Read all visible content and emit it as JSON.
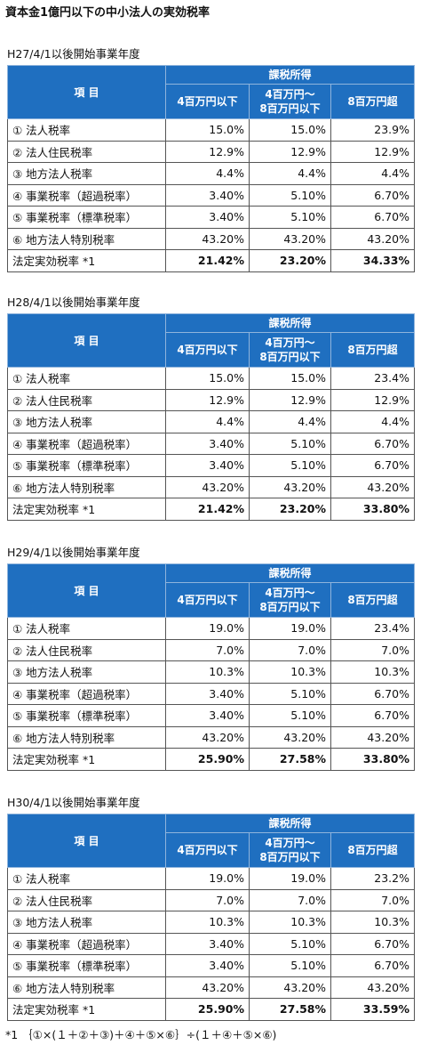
{
  "title": "資本金1億円以下の中小法人の実効税率",
  "sections": [
    {
      "heading": "H27/4/1以後開始事業年度",
      "item_header": "項 目",
      "group_header": "課税所得",
      "columns": [
        [
          "4百万円以下"
        ],
        [
          "4百万円～",
          "8百万円以下"
        ],
        [
          "8百万円超"
        ]
      ],
      "rows": [
        [
          "① 法人税率",
          "15.0%",
          "15.0%",
          "23.9%"
        ],
        [
          "② 法人住民税率",
          "12.9%",
          "12.9%",
          "12.9%"
        ],
        [
          "③ 地方法人税率",
          "4.4%",
          "4.4%",
          "4.4%"
        ],
        [
          "④ 事業税率（超過税率）",
          "3.40%",
          "5.10%",
          "6.70%"
        ],
        [
          "⑤ 事業税率（標準税率）",
          "3.40%",
          "5.10%",
          "6.70%"
        ],
        [
          "⑥ 地方法人特別税率",
          "43.20%",
          "43.20%",
          "43.20%"
        ],
        [
          "法定実効税率 *1",
          "21.42%",
          "23.20%",
          "34.33%"
        ]
      ]
    },
    {
      "heading": "H28/4/1以後開始事業年度",
      "item_header": "項 目",
      "group_header": "課税所得",
      "columns": [
        [
          "4百万円以下"
        ],
        [
          "4百万円～",
          "8百万円以下"
        ],
        [
          "8百万円超"
        ]
      ],
      "rows": [
        [
          "① 法人税率",
          "15.0%",
          "15.0%",
          "23.4%"
        ],
        [
          "② 法人住民税率",
          "12.9%",
          "12.9%",
          "12.9%"
        ],
        [
          "③ 地方法人税率",
          "4.4%",
          "4.4%",
          "4.4%"
        ],
        [
          "④ 事業税率（超過税率）",
          "3.40%",
          "5.10%",
          "6.70%"
        ],
        [
          "⑤ 事業税率（標準税率）",
          "3.40%",
          "5.10%",
          "6.70%"
        ],
        [
          "⑥ 地方法人特別税率",
          "43.20%",
          "43.20%",
          "43.20%"
        ],
        [
          "法定実効税率 *1",
          "21.42%",
          "23.20%",
          "33.80%"
        ]
      ]
    },
    {
      "heading": "H29/4/1以後開始事業年度",
      "item_header": "項 目",
      "group_header": "課税所得",
      "columns": [
        [
          "4百万円以下"
        ],
        [
          "4百万円～",
          "8百万円以下"
        ],
        [
          "8百万円超"
        ]
      ],
      "rows": [
        [
          "① 法人税率",
          "19.0%",
          "19.0%",
          "23.4%"
        ],
        [
          "② 法人住民税率",
          "7.0%",
          "7.0%",
          "7.0%"
        ],
        [
          "③ 地方法人税率",
          "10.3%",
          "10.3%",
          "10.3%"
        ],
        [
          "④ 事業税率（超過税率）",
          "3.40%",
          "5.10%",
          "6.70%"
        ],
        [
          "⑤ 事業税率（標準税率）",
          "3.40%",
          "5.10%",
          "6.70%"
        ],
        [
          "⑥ 地方法人特別税率",
          "43.20%",
          "43.20%",
          "43.20%"
        ],
        [
          "法定実効税率 *1",
          "25.90%",
          "27.58%",
          "33.80%"
        ]
      ]
    },
    {
      "heading": "H30/4/1以後開始事業年度",
      "item_header": "項 目",
      "group_header": "課税所得",
      "columns": [
        [
          "4百万円以下"
        ],
        [
          "4百万円～",
          "8百万円以下"
        ],
        [
          "8百万円超"
        ]
      ],
      "rows": [
        [
          "① 法人税率",
          "19.0%",
          "19.0%",
          "23.2%"
        ],
        [
          "② 法人住民税率",
          "7.0%",
          "7.0%",
          "7.0%"
        ],
        [
          "③ 地方法人税率",
          "10.3%",
          "10.3%",
          "10.3%"
        ],
        [
          "④ 事業税率（超過税率）",
          "3.40%",
          "5.10%",
          "6.70%"
        ],
        [
          "⑤ 事業税率（標準税率）",
          "3.40%",
          "5.10%",
          "6.70%"
        ],
        [
          "⑥ 地方法人特別税率",
          "43.20%",
          "43.20%",
          "43.20%"
        ],
        [
          "法定実効税率 *1",
          "25.90%",
          "27.58%",
          "33.59%"
        ]
      ]
    }
  ],
  "footnote": "*1 ｛①×(１＋②＋③)＋④＋⑤×⑥｝÷(１＋④＋⑤×⑥)"
}
